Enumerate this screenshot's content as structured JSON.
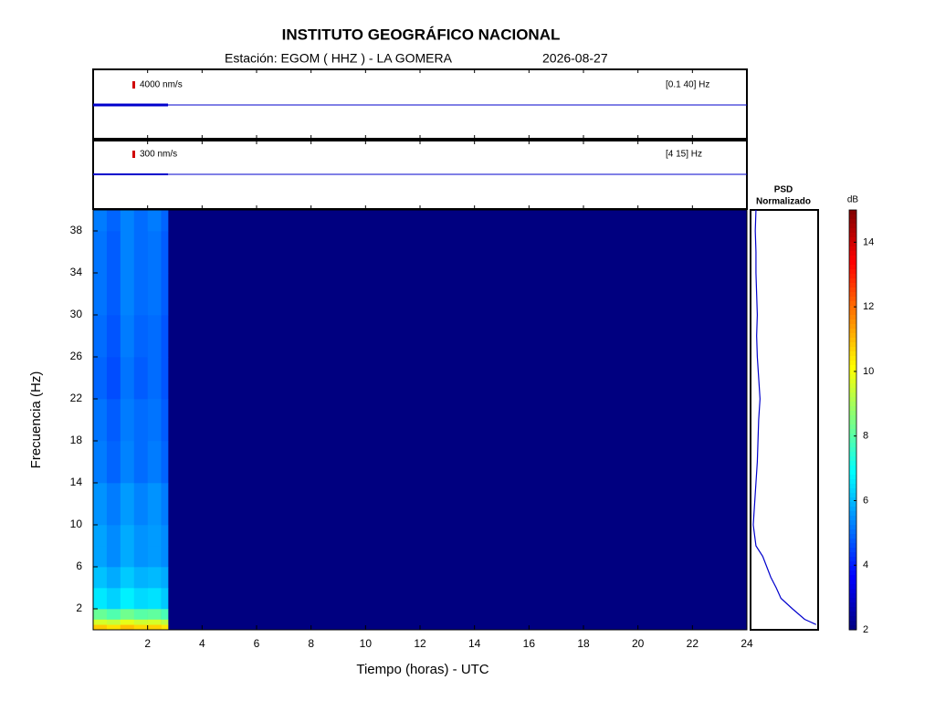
{
  "chart_data": {
    "type": "spectrogram",
    "title": "INSTITUTO GEOGRÁFICO NACIONAL",
    "station": "Estación:  EGOM ( HHZ ) - LA GOMERA",
    "date": "2026-08-27",
    "xlabel": "Tiempo (horas) - UTC",
    "ylabel": "Frecuencia  (Hz)",
    "xlim": [
      0,
      24
    ],
    "xticks": [
      2,
      4,
      6,
      8,
      10,
      12,
      14,
      16,
      18,
      20,
      22,
      24
    ],
    "ylim": [
      0,
      40
    ],
    "yticks": [
      2,
      6,
      10,
      14,
      18,
      22,
      26,
      30,
      34,
      38
    ],
    "time_edges": [
      0,
      0.5,
      1,
      1.5,
      2,
      2.5,
      2.75
    ],
    "freq_edges": [
      0,
      0.5,
      1,
      2,
      4,
      6,
      8,
      10,
      14,
      18,
      22,
      26,
      30,
      34,
      38,
      40
    ],
    "values": [
      [
        10.8,
        10.5,
        10.9,
        10.6,
        10.7,
        10.4
      ],
      [
        9.6,
        9.4,
        9.8,
        9.5,
        9.6,
        9.3
      ],
      [
        8.2,
        7.9,
        8.3,
        8.0,
        8.1,
        7.8
      ],
      [
        6.6,
        6.3,
        6.7,
        6.4,
        6.5,
        6.2
      ],
      [
        6.1,
        5.8,
        6.2,
        5.9,
        6.0,
        5.8
      ],
      [
        5.7,
        5.4,
        5.8,
        5.5,
        5.6,
        5.4
      ],
      [
        5.7,
        5.4,
        5.8,
        5.5,
        5.6,
        5.4
      ],
      [
        5.5,
        5.2,
        5.6,
        5.3,
        5.5,
        5.2
      ],
      [
        5.2,
        4.9,
        5.3,
        5.0,
        5.2,
        4.9
      ],
      [
        5.1,
        4.8,
        5.2,
        5.0,
        5.1,
        4.8
      ],
      [
        4.9,
        4.6,
        5.1,
        4.8,
        5.0,
        4.7
      ],
      [
        5.0,
        4.7,
        5.2,
        4.9,
        5.0,
        4.7
      ],
      [
        5.1,
        4.8,
        5.3,
        5.0,
        5.1,
        4.8
      ],
      [
        5.1,
        4.8,
        5.3,
        5.0,
        5.1,
        4.8
      ],
      [
        5.2,
        4.9,
        5.3,
        5.0,
        5.2,
        4.9
      ]
    ],
    "zlim": [
      2,
      15
    ],
    "colorbar_label": "dB",
    "colorbar_ticks": [
      2,
      4,
      6,
      8,
      10,
      12,
      14
    ],
    "traces": [
      {
        "scale": "4000 nm/s",
        "band": "[0.1 40] Hz",
        "color": "#0000cc"
      },
      {
        "scale": "300 nm/s",
        "band": "[4 15] Hz",
        "color": "#0000cc"
      }
    ],
    "psd": {
      "title": [
        "PSD",
        "Normalizado"
      ],
      "xlim": [
        0,
        1
      ],
      "color": "#0000cc",
      "freqs": [
        0.5,
        1,
        2,
        3,
        4,
        5,
        6,
        7,
        8,
        9,
        10,
        12,
        14,
        16,
        18,
        20,
        22,
        24,
        26,
        28,
        30,
        32,
        34,
        36,
        38,
        40
      ],
      "values": [
        0.97,
        0.8,
        0.62,
        0.45,
        0.38,
        0.3,
        0.24,
        0.18,
        0.08,
        0.06,
        0.04,
        0.06,
        0.08,
        0.1,
        0.11,
        0.12,
        0.14,
        0.12,
        0.1,
        0.09,
        0.1,
        0.09,
        0.08,
        0.08,
        0.07,
        0.08
      ]
    }
  }
}
